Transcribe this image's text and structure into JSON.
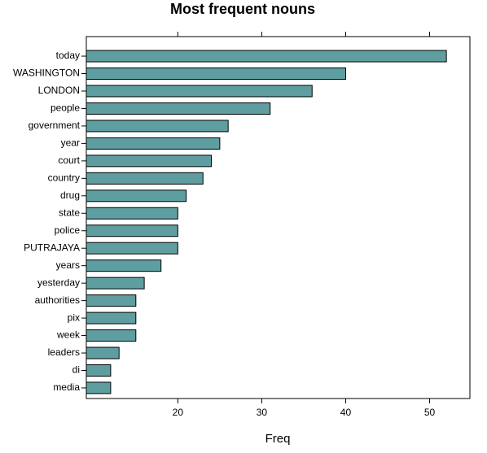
{
  "chart_data": {
    "type": "barh",
    "title": "Most frequent nouns",
    "x_label": "Freq",
    "categories": [
      "today",
      "WASHINGTON",
      "LONDON",
      "people",
      "government",
      "year",
      "court",
      "country",
      "drug",
      "state",
      "police",
      "PUTRAJAYA",
      "years",
      "yesterday",
      "authorities",
      "pix",
      "week",
      "leaders",
      "di",
      "media"
    ],
    "values": [
      52,
      40,
      36,
      31,
      26,
      25,
      24,
      23,
      21,
      20,
      20,
      20,
      18,
      16,
      15,
      15,
      15,
      13,
      12,
      12
    ],
    "color": "#5f9ea0",
    "xlim": [
      9.1,
      54.8
    ],
    "xticks": [
      20,
      30,
      40,
      50
    ]
  }
}
